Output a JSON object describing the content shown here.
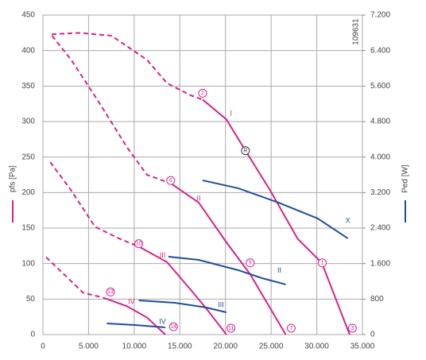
{
  "chart_data": {
    "type": "line",
    "y_label": "pfs [Pa]",
    "y2_label": "Ped [W]",
    "code": "109631",
    "xlim": [
      0,
      35000
    ],
    "xticks": [
      0,
      {
        "value": 5000,
        "label": "5.000"
      },
      {
        "value": 10000,
        "label": "10.000"
      },
      {
        "value": 15000,
        "label": "15.000"
      },
      {
        "value": 20000,
        "label": "20.000"
      },
      {
        "value": 25000,
        "label": "25.000"
      },
      {
        "value": 30000,
        "label": "30.000"
      },
      {
        "value": 35000,
        "label": "35.000"
      }
    ],
    "ylim": [
      0,
      450
    ],
    "yticks": [
      0,
      50,
      100,
      150,
      200,
      250,
      300,
      350,
      400,
      450
    ],
    "y2lim": [
      0,
      7200
    ],
    "y2ticks": [
      0,
      800,
      {
        "value": 1600,
        "label": "1.600"
      },
      {
        "value": 2400,
        "label": "2.400"
      },
      {
        "value": 3200,
        "label": "3.200"
      },
      {
        "value": 4000,
        "label": "4.000"
      },
      {
        "value": 4800,
        "label": "4.800"
      },
      {
        "value": 5600,
        "label": "5.600"
      },
      {
        "value": 6400,
        "label": "6.400"
      },
      {
        "value": 7200,
        "label": "7.200"
      }
    ],
    "grid": true,
    "series": [
      {
        "color": "#d6248a",
        "dashed": true,
        "x": [
          960,
          4000,
          7500,
          11400,
          13600,
          16200,
          17500
        ],
        "values": [
          423,
          425,
          421,
          387,
          354,
          337,
          331
        ]
      },
      {
        "color": "#d6248a",
        "x": [
          17500,
          20100,
          22190,
          24900,
          27900,
          30550,
          33600
        ],
        "values": [
          331,
          303,
          259,
          203,
          135,
          101,
          0
        ]
      },
      {
        "color": "#d6248a",
        "dashed": true,
        "x": [
          1000,
          3100,
          6200,
          9200,
          11400,
          14000
        ],
        "values": [
          421,
          387,
          326,
          264,
          225,
          213
        ]
      },
      {
        "color": "#d6248a",
        "x": [
          14000,
          17060,
          20100,
          22700,
          26600
        ],
        "values": [
          213,
          186,
          130,
          85,
          0
        ]
      },
      {
        "color": "#d6248a",
        "dashed": true,
        "x": [
          800,
          3100,
          5700,
          8400,
          10500
        ],
        "values": [
          243,
          203,
          152,
          135,
          124
        ]
      },
      {
        "color": "#d6248a",
        "x": [
          10500,
          13600,
          16200,
          18000,
          20100
        ],
        "values": [
          124,
          102,
          63,
          35,
          0
        ]
      },
      {
        "color": "#d6248a",
        "dashed": true,
        "x": [
          350,
          2300,
          4400,
          6600
        ],
        "values": [
          109,
          85,
          59,
          52
        ]
      },
      {
        "color": "#d6248a",
        "x": [
          6600,
          9200,
          11400,
          13400
        ],
        "values": [
          52,
          40,
          24,
          0
        ]
      },
      {
        "color": "#1f4e99",
        "axis": "y2",
        "x": [
          17500,
          21400,
          25800,
          30100,
          33400
        ],
        "values": [
          3476,
          3297,
          2975,
          2616,
          2168
        ]
      },
      {
        "color": "#1f4e99",
        "axis": "y2",
        "x": [
          13750,
          17060,
          21400,
          24000,
          26600
        ],
        "values": [
          1756,
          1684,
          1451,
          1272,
          1129
        ]
      },
      {
        "color": "#1f4e99",
        "axis": "y2",
        "x": [
          10500,
          14450,
          17900,
          20100
        ],
        "values": [
          771,
          717,
          609,
          502
        ]
      },
      {
        "color": "#1f4e99",
        "axis": "y2",
        "x": [
          7000,
          10100,
          13400
        ],
        "values": [
          251,
          215,
          161
        ]
      }
    ],
    "annotations": [
      {
        "text": "1",
        "x": 30600,
        "y": 101,
        "circled": true,
        "color": "#d6248a"
      },
      {
        "text": "2",
        "x": 17500,
        "y": 340,
        "circled": true,
        "color": "#d6248a"
      },
      {
        "text": "3",
        "x": 33900,
        "y": 9,
        "circled": true,
        "color": "#d6248a"
      },
      {
        "text": "6",
        "x": 14000,
        "y": 217,
        "circled": true,
        "color": "#d6248a"
      },
      {
        "text": "7",
        "x": 27200,
        "y": 9,
        "circled": true,
        "color": "#d6248a"
      },
      {
        "text": "9",
        "x": 22700,
        "y": 101,
        "circled": true,
        "color": "#d6248a"
      },
      {
        "text": "10",
        "x": 10500,
        "y": 128,
        "circled": true,
        "color": "#d6248a"
      },
      {
        "text": "11",
        "x": 20600,
        "y": 9,
        "circled": true,
        "color": "#d6248a"
      },
      {
        "text": "13",
        "x": 7400,
        "y": 60,
        "circled": true,
        "color": "#d6248a"
      },
      {
        "text": "14",
        "x": 14300,
        "y": 11,
        "circled": true,
        "color": "#d6248a"
      },
      {
        "text": "R",
        "x": 22190,
        "y": 259,
        "circled": true,
        "color": "#333333"
      },
      {
        "text": "I",
        "x": 20600,
        "y": 311,
        "color": "#d6248a"
      },
      {
        "text": "II",
        "x": 17060,
        "y": 191,
        "color": "#d6248a"
      },
      {
        "text": "III",
        "x": 13100,
        "y": 111,
        "color": "#d6248a"
      },
      {
        "text": "IV",
        "x": 9700,
        "y": 46,
        "color": "#d6248a"
      },
      {
        "text": "X",
        "x": 33400,
        "y": 160,
        "color": "#1f4e99"
      },
      {
        "text": "II",
        "x": 25900,
        "y": 90,
        "color": "#1f4e99"
      },
      {
        "text": "III",
        "x": 19500,
        "y": 41,
        "color": "#1f4e99"
      },
      {
        "text": "IV",
        "x": 13100,
        "y": 18,
        "color": "#1f4e99"
      }
    ]
  }
}
